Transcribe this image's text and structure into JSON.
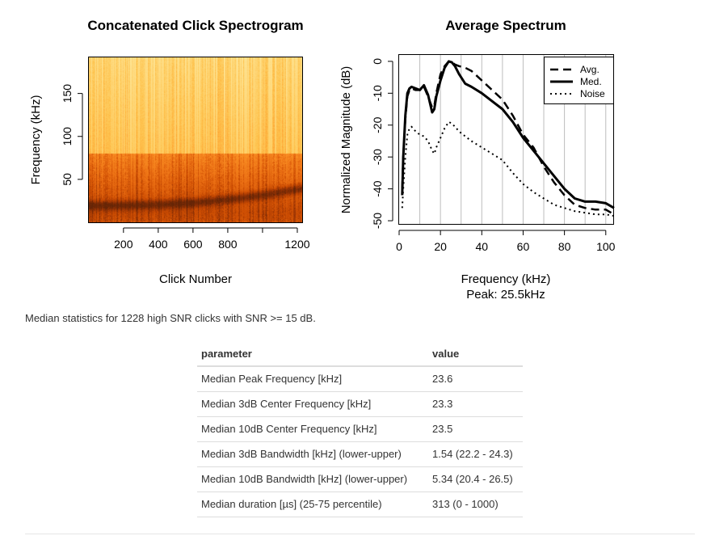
{
  "chart_data": [
    {
      "type": "heatmap",
      "title": "Concatenated Click Spectrogram",
      "xlabel": "Click Number",
      "ylabel": "Frequency (kHz)",
      "xlim": [
        1,
        1228
      ],
      "ylim": [
        0,
        192
      ],
      "xticks": [
        200,
        400,
        600,
        800,
        1200
      ],
      "yticks": [
        50,
        100,
        150
      ],
      "colormap": [
        "#ffffd4",
        "#fee391",
        "#fec44f",
        "#fe9929",
        "#ec7014",
        "#cc4c02",
        "#993404",
        "#662506"
      ],
      "energy_band_kHz": [
        0,
        80
      ],
      "ridge_frequency_kHz": {
        "x": [
          1,
          200,
          400,
          600,
          800,
          1000,
          1228
        ],
        "y": [
          20,
          20,
          21,
          23,
          27,
          32,
          40
        ]
      }
    },
    {
      "type": "line",
      "title": "Average Spectrum",
      "xlabel": "Frequency (kHz)",
      "subtitle": "Peak: 25.5kHz",
      "ylabel": "Normalized Magnitude (dB)",
      "xlim": [
        0,
        104
      ],
      "ylim": [
        -51,
        2
      ],
      "xticks": [
        0,
        20,
        40,
        60,
        80,
        100
      ],
      "yticks": [
        0,
        -10,
        -20,
        -30,
        -40,
        -50
      ],
      "grid_x": [
        10,
        20,
        30,
        40,
        50,
        60,
        70,
        80,
        90,
        100
      ],
      "legend_position": "top-right",
      "series": [
        {
          "name": "Avg.",
          "style": "dashed",
          "x": [
            1.5,
            2,
            3,
            4,
            5,
            6,
            8,
            10,
            12,
            14,
            16,
            17,
            18,
            20,
            22,
            24,
            25.5,
            27,
            29,
            32,
            35,
            40,
            45,
            50,
            55,
            60,
            65,
            70,
            75,
            80,
            85,
            90,
            95,
            100,
            104
          ],
          "y": [
            -40,
            -30,
            -18,
            -11,
            -9,
            -8.5,
            -9,
            -9,
            -8,
            -11,
            -14.5,
            -14,
            -10,
            -4,
            -1.5,
            0,
            -0.2,
            -1,
            -1.5,
            -2,
            -3,
            -6,
            -9,
            -12,
            -17,
            -23,
            -27,
            -33,
            -38,
            -42,
            -45,
            -46,
            -46.5,
            -46.5,
            -48
          ]
        },
        {
          "name": "Med.",
          "style": "solid",
          "x": [
            1.5,
            2,
            3,
            4,
            5,
            6,
            8,
            10,
            12,
            14,
            16,
            17,
            18,
            20,
            22,
            24,
            25.5,
            27,
            29,
            32,
            35,
            40,
            45,
            50,
            55,
            60,
            65,
            70,
            75,
            80,
            85,
            90,
            95,
            100,
            104
          ],
          "y": [
            -42,
            -30,
            -17,
            -10,
            -8.5,
            -8,
            -8.5,
            -9,
            -7.5,
            -10.5,
            -16,
            -15,
            -11,
            -6,
            -2,
            0,
            -0.3,
            -1.5,
            -4,
            -7,
            -8,
            -10,
            -12.5,
            -15,
            -19,
            -24,
            -28,
            -32,
            -36,
            -40,
            -43,
            -44,
            -44,
            -44.5,
            -46
          ]
        },
        {
          "name": "Noise",
          "style": "dotted",
          "x": [
            1.5,
            2,
            3,
            4,
            5,
            6,
            8,
            10,
            12,
            14,
            16,
            17,
            18,
            20,
            22,
            24,
            25.5,
            27,
            29,
            32,
            35,
            40,
            45,
            50,
            55,
            60,
            65,
            70,
            75,
            80,
            85,
            90,
            95,
            100,
            104
          ],
          "y": [
            -46,
            -40,
            -30,
            -23,
            -21,
            -20.5,
            -22,
            -23,
            -23.5,
            -25,
            -28,
            -29,
            -27,
            -24,
            -21,
            -19,
            -19.5,
            -20.5,
            -22,
            -23.5,
            -25,
            -27,
            -29,
            -31,
            -35,
            -38.5,
            -41,
            -43,
            -45,
            -46,
            -47,
            -47.5,
            -48,
            -48,
            -48.5
          ]
        }
      ]
    }
  ],
  "caption": "Median statistics for 1228 high SNR clicks with SNR >= 15 dB.",
  "stats_table": {
    "headers": [
      "parameter",
      "value"
    ],
    "rows": [
      [
        "Median Peak Frequency [kHz]",
        "23.6"
      ],
      [
        "Median 3dB Center Frequency [kHz]",
        "23.3"
      ],
      [
        "Median 10dB Center Frequency [kHz]",
        "23.5"
      ],
      [
        "Median 3dB Bandwidth [kHz] (lower-upper)",
        "1.54 (22.2 - 24.3)"
      ],
      [
        "Median 10dB Bandwidth [kHz] (lower-upper)",
        "5.34 (20.4 - 26.5)"
      ],
      [
        "Median duration [µs] (25-75 percentile)",
        "313 (0 - 1000)"
      ]
    ]
  }
}
